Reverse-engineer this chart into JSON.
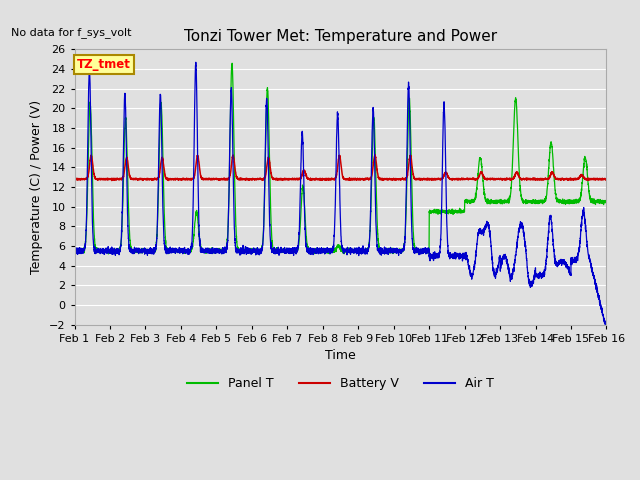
{
  "title": "Tonzi Tower Met: Temperature and Power",
  "subtitle": "No data for f_sys_volt",
  "xlabel": "Time",
  "ylabel": "Temperature (C) / Power (V)",
  "xlim": [
    0,
    15
  ],
  "ylim": [
    -2,
    26
  ],
  "yticks": [
    -2,
    0,
    2,
    4,
    6,
    8,
    10,
    12,
    14,
    16,
    18,
    20,
    22,
    24,
    26
  ],
  "xtick_labels": [
    "Feb 1",
    "Feb 2",
    "Feb 3",
    "Feb 4",
    "Feb 5",
    "Feb 6",
    "Feb 7",
    "Feb 8",
    "Feb 9",
    "Feb 10",
    "Feb 11",
    "Feb 12",
    "Feb 13",
    "Feb 14",
    "Feb 15",
    "Feb 16"
  ],
  "xtick_positions": [
    0,
    1,
    2,
    3,
    4,
    5,
    6,
    7,
    8,
    9,
    10,
    11,
    12,
    13,
    14,
    15
  ],
  "panel_color": "#00bb00",
  "battery_color": "#cc0000",
  "air_color": "#0000cc",
  "plot_bg_color": "#e0e0e0",
  "fig_bg_color": "#e0e0e0",
  "legend_label_panel": "Panel T",
  "legend_label_battery": "Battery V",
  "legend_label_air": "Air T",
  "dataset_label": "TZ_tmet",
  "dataset_label_bg": "#ffff99",
  "dataset_label_border": "#aa8800",
  "grid_color": "#ffffff",
  "title_fontsize": 11,
  "label_fontsize": 9,
  "tick_fontsize": 8
}
